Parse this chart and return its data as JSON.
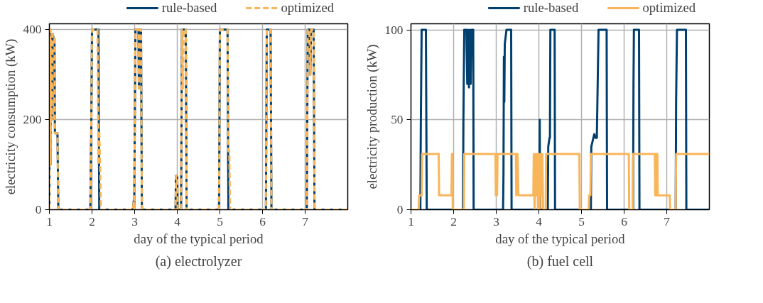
{
  "chart_data": [
    {
      "type": "line",
      "title": "(a) electrolyzer",
      "xlabel": "day of the typical period",
      "ylabel": "electricity consumption (kW)",
      "xlim": [
        1,
        8
      ],
      "ylim": [
        0,
        413
      ],
      "xticks": [
        1,
        2,
        3,
        4,
        5,
        6,
        7
      ],
      "yticks": [
        0,
        200,
        400
      ],
      "grid": true,
      "legend": "top",
      "series": [
        {
          "name": "rule-based",
          "color": "#003f6e",
          "line_style": "solid",
          "x": [
            1.0,
            1.005,
            1.02,
            1.03,
            1.04,
            1.06,
            1.08,
            1.1,
            1.12,
            1.13,
            1.19,
            1.21,
            1.96,
            1.98,
            2.0,
            2.15,
            2.17,
            2.96,
            2.98,
            2.99,
            3.02,
            3.09,
            3.1,
            3.11,
            3.15,
            3.17,
            3.96,
            3.97,
            4.0,
            4.01,
            4.09,
            4.11,
            4.2,
            4.22,
            4.98,
            5.0,
            5.04,
            5.18,
            5.2,
            6.08,
            6.1,
            6.19,
            6.21,
            7.04,
            7.06,
            7.1,
            7.12,
            7.14,
            7.2,
            7.22,
            8.0
          ],
          "values": [
            0,
            400,
            400,
            100,
            380,
            200,
            390,
            380,
            380,
            170,
            170,
            0,
            0,
            160,
            400,
            400,
            0,
            0,
            20,
            0,
            400,
            400,
            270,
            400,
            400,
            0,
            0,
            75,
            75,
            0,
            0,
            400,
            400,
            0,
            0,
            400,
            400,
            400,
            0,
            0,
            400,
            400,
            0,
            0,
            400,
            400,
            300,
            400,
            400,
            0,
            0
          ]
        },
        {
          "name": "optimized",
          "color": "#f9b55a",
          "line_style": "dashed",
          "x": [
            1.0,
            1.005,
            1.02,
            1.03,
            1.04,
            1.06,
            1.08,
            1.1,
            1.12,
            1.13,
            1.19,
            1.21,
            1.96,
            1.98,
            2.0,
            2.13,
            2.15,
            2.17,
            2.19,
            2.21,
            2.96,
            2.98,
            2.99,
            3.02,
            3.09,
            3.1,
            3.11,
            3.15,
            3.17,
            3.96,
            3.97,
            4.0,
            4.01,
            4.09,
            4.11,
            4.13,
            4.15,
            4.2,
            4.22,
            4.98,
            5.0,
            5.04,
            5.18,
            5.2,
            5.22,
            5.24,
            6.08,
            6.1,
            6.19,
            6.21,
            7.04,
            7.06,
            7.1,
            7.12,
            7.14,
            7.2,
            7.22,
            8.0
          ],
          "values": [
            0,
            400,
            400,
            100,
            380,
            200,
            390,
            380,
            380,
            170,
            170,
            0,
            0,
            160,
            400,
            400,
            100,
            175,
            100,
            0,
            0,
            20,
            0,
            400,
            400,
            270,
            400,
            400,
            0,
            0,
            75,
            75,
            0,
            0,
            400,
            270,
            400,
            400,
            0,
            0,
            400,
            400,
            400,
            130,
            130,
            0,
            0,
            400,
            400,
            0,
            0,
            400,
            400,
            300,
            400,
            400,
            0,
            0
          ]
        }
      ]
    },
    {
      "type": "line",
      "title": "(b) fuel cell",
      "xlabel": "day of the typical period",
      "ylabel": "electricity production (kW)",
      "xlim": [
        1,
        8
      ],
      "ylim": [
        0,
        103.4
      ],
      "xticks": [
        1,
        2,
        3,
        4,
        5,
        6,
        7
      ],
      "yticks": [
        0,
        50,
        100
      ],
      "grid": true,
      "legend": "top",
      "series": [
        {
          "name": "rule-based",
          "color": "#003f6e",
          "line_style": "solid",
          "x": [
            1.0,
            1.22,
            1.23,
            1.25,
            1.35,
            1.37,
            2.22,
            2.23,
            2.25,
            2.3,
            2.32,
            2.34,
            2.36,
            2.38,
            2.4,
            2.42,
            2.46,
            2.47,
            3.16,
            3.17,
            3.18,
            3.19,
            3.2,
            3.24,
            3.35,
            3.36,
            4.01,
            4.02,
            4.03,
            4.21,
            4.22,
            4.25,
            4.26,
            4.27,
            4.37,
            4.38,
            5.22,
            5.23,
            5.25,
            5.3,
            5.33,
            5.36,
            5.4,
            5.42,
            5.59,
            5.6,
            6.21,
            6.22,
            6.23,
            6.35,
            6.36,
            7.21,
            7.22,
            7.24,
            7.45,
            7.46,
            8.0
          ],
          "values": [
            0,
            0,
            45,
            100,
            100,
            0,
            0,
            50,
            100,
            100,
            70,
            100,
            68,
            100,
            70,
            100,
            100,
            0,
            0,
            20,
            85,
            60,
            92,
            100,
            100,
            0,
            0,
            50,
            0,
            0,
            35,
            40,
            40,
            100,
            100,
            0,
            0,
            35,
            37,
            42,
            40,
            40,
            100,
            100,
            100,
            0,
            0,
            70,
            100,
            100,
            0,
            0,
            60,
            100,
            100,
            0,
            0
          ]
        },
        {
          "name": "optimized",
          "color": "#f9b55a",
          "line_style": "solid",
          "x": [
            1.0,
            1.18,
            1.19,
            1.25,
            1.26,
            1.65,
            1.66,
            1.95,
            1.96,
            1.97,
            1.98,
            2.24,
            2.25,
            2.98,
            2.99,
            3.02,
            3.03,
            3.46,
            3.47,
            3.48,
            3.5,
            3.52,
            3.53,
            3.87,
            3.88,
            3.9,
            3.92,
            3.94,
            3.96,
            3.98,
            4.0,
            4.02,
            4.04,
            4.06,
            4.08,
            4.1,
            4.16,
            4.17,
            4.95,
            4.96,
            5.17,
            5.18,
            5.21,
            5.22,
            6.11,
            6.12,
            6.2,
            6.21,
            6.72,
            6.73,
            6.74,
            6.75,
            6.76,
            6.77,
            6.78,
            6.79,
            6.8,
            7.07,
            7.08,
            7.21,
            7.22,
            8.0
          ],
          "values": [
            0,
            0,
            8,
            8,
            31,
            31,
            8,
            8,
            31,
            31,
            0,
            0,
            31,
            31,
            8,
            8,
            31,
            31,
            8,
            31,
            31,
            8,
            8,
            8,
            31,
            0,
            31,
            8,
            31,
            0,
            31,
            0,
            31,
            8,
            31,
            0,
            0,
            31,
            31,
            0,
            0,
            8,
            8,
            31,
            31,
            0,
            0,
            31,
            31,
            8,
            31,
            8,
            31,
            8,
            31,
            8,
            8,
            8,
            0,
            0,
            31,
            31
          ]
        }
      ]
    }
  ]
}
